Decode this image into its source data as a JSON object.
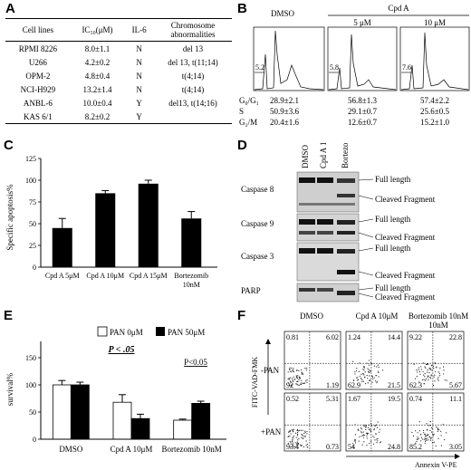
{
  "panels": {
    "a": "A",
    "b": "B",
    "c": "C",
    "d": "D",
    "e": "E",
    "f": "F"
  },
  "table_a": {
    "headers": [
      "Cell lines",
      "IC₅₀(μM)",
      "IL-6",
      "Chromosome abnormalities"
    ],
    "rows": [
      [
        "RPMI 8226",
        "8.0±1.1",
        "N",
        "del 13"
      ],
      [
        "U266",
        "4.2±0.2",
        "N",
        "del 13, t(11;14)"
      ],
      [
        "OPM-2",
        "4.8±0.4",
        "N",
        "t(4;14)"
      ],
      [
        "NCI-H929",
        "13.2±1.4",
        "N",
        "t(4;14)"
      ],
      [
        "ANBL-6",
        "10.0±0.4",
        "Y",
        "del13, t(14;16)"
      ],
      [
        "KAS 6/1",
        "8.2±0.2",
        "Y",
        ""
      ]
    ]
  },
  "panel_b": {
    "group_label": "Cpd A",
    "conditions": [
      "DMSO",
      "5 μM",
      "10 μM"
    ],
    "subg1": [
      "5.2",
      "5.8",
      "7.6"
    ],
    "row_labels": [
      "G₀/G₁",
      "S",
      "G₂/M"
    ],
    "values": [
      [
        "28.9±2.1",
        "56.8±1.3",
        "57.4±2.2"
      ],
      [
        "50.9±3.6",
        "29.1±0.7",
        "25.6±0.5"
      ],
      [
        "20.4±1.6",
        "12.6±0.7",
        "15.2±1.0"
      ]
    ]
  },
  "chart_data": [
    {
      "type": "bar",
      "title": "",
      "ylabel": "Specific apoptosis%",
      "categories": [
        "Cpd A 5μM",
        "Cpd A 10μM",
        "Cpd A 15μM",
        "Bortezomib 10nM"
      ],
      "values": [
        45,
        85,
        96,
        56
      ],
      "errors": [
        11,
        3,
        4,
        8
      ],
      "ylim": [
        0,
        125
      ],
      "yticks": [
        "0",
        "25",
        "50",
        "75",
        "100",
        "125"
      ],
      "bar_color": "#000000"
    },
    {
      "type": "bar",
      "ylabel": "survival%",
      "categories": [
        "DMSO",
        "Cpd A 10μM",
        "Bortezomib 10nM"
      ],
      "series": [
        {
          "name": "PAN 0μM",
          "values": [
            100,
            68,
            35
          ],
          "errors": [
            8,
            14,
            2
          ],
          "color": "#ffffff"
        },
        {
          "name": "PAN 50μM",
          "values": [
            100,
            38,
            66
          ],
          "errors": [
            5,
            8,
            4
          ],
          "color": "#000000"
        }
      ],
      "ylim": [
        0,
        150
      ],
      "yticks": [
        "0",
        "50",
        "100",
        "150"
      ],
      "annotations": [
        "P < .05",
        "P<0.05"
      ]
    }
  ],
  "panel_d": {
    "lanes": [
      "DMSO",
      "Cpd A 10μM",
      "Bortezomib 10nM"
    ],
    "blots": [
      {
        "name": "Caspase 8",
        "bands": [
          "Full length",
          "Cleaved Fragment"
        ]
      },
      {
        "name": "Caspase 9",
        "bands": [
          "Full length",
          "Cleaved Fragment"
        ]
      },
      {
        "name": "Caspase 3",
        "bands": [
          "Full length",
          "Cleaved Fragment"
        ]
      },
      {
        "name": "PARP",
        "bands": [
          "Full length",
          "Cleaved Fragment"
        ]
      }
    ]
  },
  "panel_f": {
    "columns": [
      "DMSO",
      "Cpd A 10μM",
      "Bortezomib 10nM"
    ],
    "rows": [
      "-PAN",
      "+PAN"
    ],
    "ylabel": "FITC-VAD-FMK",
    "xlabel": "Annexin V-PE",
    "quadrants": [
      [
        [
          "0.81",
          "6.02",
          "92",
          "1.19"
        ],
        [
          "1.24",
          "14.4",
          "62.9",
          "21.5"
        ],
        [
          "9.22",
          "22.8",
          "62.3",
          "5.67"
        ]
      ],
      [
        [
          "0.52",
          "5.31",
          "93.4",
          "0.73"
        ],
        [
          "1.67",
          "19.5",
          "54",
          "24.8"
        ],
        [
          "0.74",
          "11.1",
          "85.2",
          "3.05"
        ]
      ]
    ]
  }
}
